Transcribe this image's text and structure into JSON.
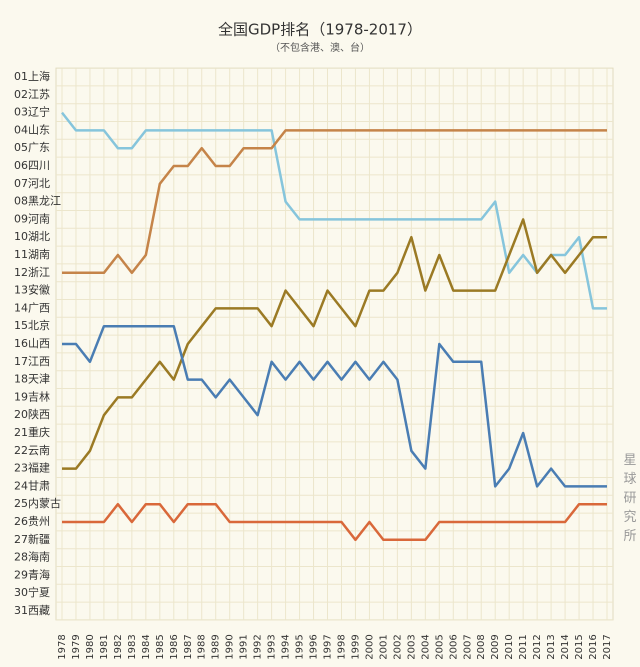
{
  "chart_data": {
    "type": "line",
    "title": "全国GDP排名（1978-2017）",
    "subtitle": "（不包含港、澳、台）",
    "watermark": "星球研究所",
    "y_categories": [
      "01上海",
      "02江苏",
      "03辽宁",
      "04山东",
      "05广东",
      "06四川",
      "07河北",
      "08黑龙江",
      "09河南",
      "10湖北",
      "11湖南",
      "12浙江",
      "13安徽",
      "14广西",
      "15北京",
      "16山西",
      "17江西",
      "18天津",
      "19吉林",
      "20陕西",
      "21重庆",
      "22云南",
      "23福建",
      "24甘肃",
      "25内蒙古",
      "26贵州",
      "27新疆",
      "28海南",
      "29青海",
      "30宁夏",
      "31西藏"
    ],
    "ylim": [
      1,
      31
    ],
    "xlim": [
      1978,
      2017
    ],
    "x": [
      1978,
      1979,
      1980,
      1981,
      1982,
      1983,
      1984,
      1985,
      1986,
      1987,
      1988,
      1989,
      1990,
      1991,
      1992,
      1993,
      1994,
      1995,
      1996,
      1997,
      1998,
      1999,
      2000,
      2001,
      2002,
      2003,
      2004,
      2005,
      2006,
      2007,
      2008,
      2009,
      2010,
      2011,
      2012,
      2013,
      2014,
      2015,
      2016,
      2017
    ],
    "series": [
      {
        "color": "#86c5dc",
        "values": [
          3,
          4,
          4,
          4,
          5,
          5,
          4,
          4,
          4,
          4,
          4,
          4,
          4,
          4,
          4,
          4,
          8,
          9,
          9,
          9,
          9,
          9,
          9,
          9,
          9,
          9,
          9,
          9,
          9,
          9,
          9,
          8,
          12,
          11,
          12,
          11,
          11,
          10,
          14,
          14
        ]
      },
      {
        "color": "#c58449",
        "values": [
          12,
          12,
          12,
          12,
          11,
          12,
          11,
          7,
          6,
          6,
          5,
          6,
          6,
          5,
          5,
          5,
          4,
          4,
          4,
          4,
          4,
          4,
          4,
          4,
          4,
          4,
          4,
          4,
          4,
          4,
          4,
          4,
          4,
          4,
          4,
          4,
          4,
          4,
          4,
          4
        ]
      },
      {
        "color": "#9b7a24",
        "values": [
          23,
          23,
          22,
          20,
          19,
          19,
          18,
          17,
          18,
          16,
          15,
          14,
          14,
          14,
          14,
          15,
          13,
          14,
          15,
          13,
          14,
          15,
          13,
          13,
          12,
          10,
          13,
          11,
          13,
          13,
          13,
          13,
          11,
          9,
          12,
          11,
          12,
          11,
          10,
          10
        ]
      },
      {
        "color": "#4a7db3",
        "values": [
          16,
          16,
          17,
          15,
          15,
          15,
          15,
          15,
          15,
          18,
          18,
          19,
          18,
          19,
          20,
          17,
          18,
          17,
          18,
          17,
          18,
          17,
          18,
          17,
          18,
          22,
          23,
          16,
          17,
          17,
          17,
          24,
          23,
          21,
          24,
          23,
          24,
          24,
          24,
          24
        ]
      },
      {
        "color": "#d9683a",
        "values": [
          26,
          26,
          26,
          26,
          25,
          26,
          25,
          25,
          26,
          25,
          25,
          25,
          26,
          26,
          26,
          26,
          26,
          26,
          26,
          26,
          26,
          27,
          26,
          27,
          27,
          27,
          27,
          26,
          26,
          26,
          26,
          26,
          26,
          26,
          26,
          26,
          26,
          25,
          25,
          25
        ]
      }
    ]
  }
}
